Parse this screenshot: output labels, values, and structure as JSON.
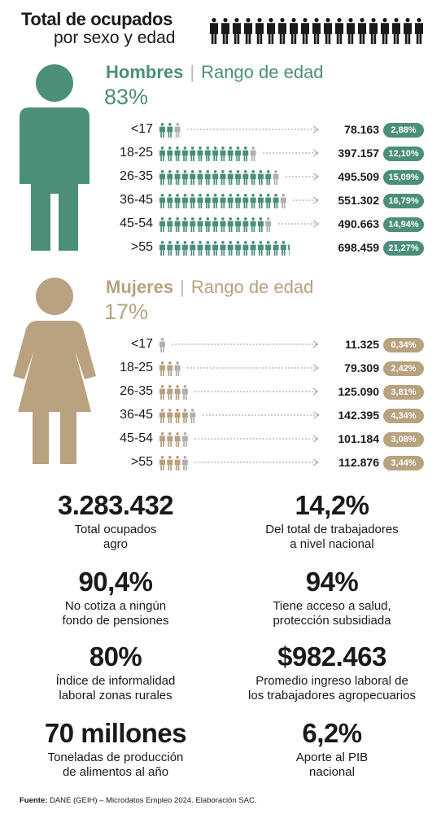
{
  "title": {
    "main": "Total de ocupados",
    "sub": "por sexo y edad"
  },
  "colors": {
    "hombres": "#4b8f7b",
    "mujeres": "#b8a27f",
    "gray": "#b0b0b0",
    "text": "#1a1a1a"
  },
  "chart_data": [
    {
      "type": "table",
      "group": "Hombres",
      "range_label": "Rango de edad",
      "share_label": "83%",
      "share": 83,
      "categories": [
        "<17",
        "18-25",
        "26-35",
        "36-45",
        "45-54",
        ">55"
      ],
      "values": [
        78163,
        397157,
        495509,
        551302,
        490663,
        698459
      ],
      "value_labels": [
        "78.163",
        "397.157",
        "495.509",
        "551.302",
        "490.663",
        "698.459"
      ],
      "percent_labels": [
        "2,88%",
        "12,10%",
        "15,09%",
        "16,79%",
        "14,94%",
        "21,27%"
      ],
      "percents": [
        2.88,
        12.1,
        15.09,
        16.79,
        14.94,
        21.27
      ]
    },
    {
      "type": "table",
      "group": "Mujeres",
      "range_label": "Rango de edad",
      "share_label": "17%",
      "share": 17,
      "categories": [
        "<17",
        "18-25",
        "26-35",
        "36-45",
        "45-54",
        ">55"
      ],
      "values": [
        11325,
        79309,
        125090,
        142395,
        101184,
        112876
      ],
      "value_labels": [
        "11.325",
        "79.309",
        "125.090",
        "142.395",
        "101.184",
        "112.876"
      ],
      "percent_labels": [
        "0,34%",
        "2,42%",
        "3,81%",
        "4,34%",
        "3,08%",
        "3,44%"
      ],
      "percents": [
        0.34,
        2.42,
        3.81,
        4.34,
        3.08,
        3.44
      ]
    }
  ],
  "stats": [
    {
      "value": "3.283.432",
      "desc": "Total ocupados\nagro"
    },
    {
      "value": "14,2%",
      "desc": "Del total de trabajadores\na nivel nacional"
    },
    {
      "value": "90,4%",
      "desc": "No cotiza a ningún\nfondo de pensiones"
    },
    {
      "value": "94%",
      "desc": "Tiene acceso a salud,\nprotección subsidiada"
    },
    {
      "value": "80%",
      "desc": "Índice de informalidad\nlaboral zonas rurales"
    },
    {
      "value": "$982.463",
      "desc": "Promedio ingreso laboral de\nlos trabajadores agropecuarios"
    },
    {
      "value": "70 millones",
      "desc": "Toneladas de producción\nde alimentos al año"
    },
    {
      "value": "6,2%",
      "desc": "Aporte al PIB\nnacional"
    }
  ],
  "source": {
    "label": "Fuente:",
    "text": " DANE (GEIH) – Microdatos Empleo 2024. Elaboración SAC."
  }
}
